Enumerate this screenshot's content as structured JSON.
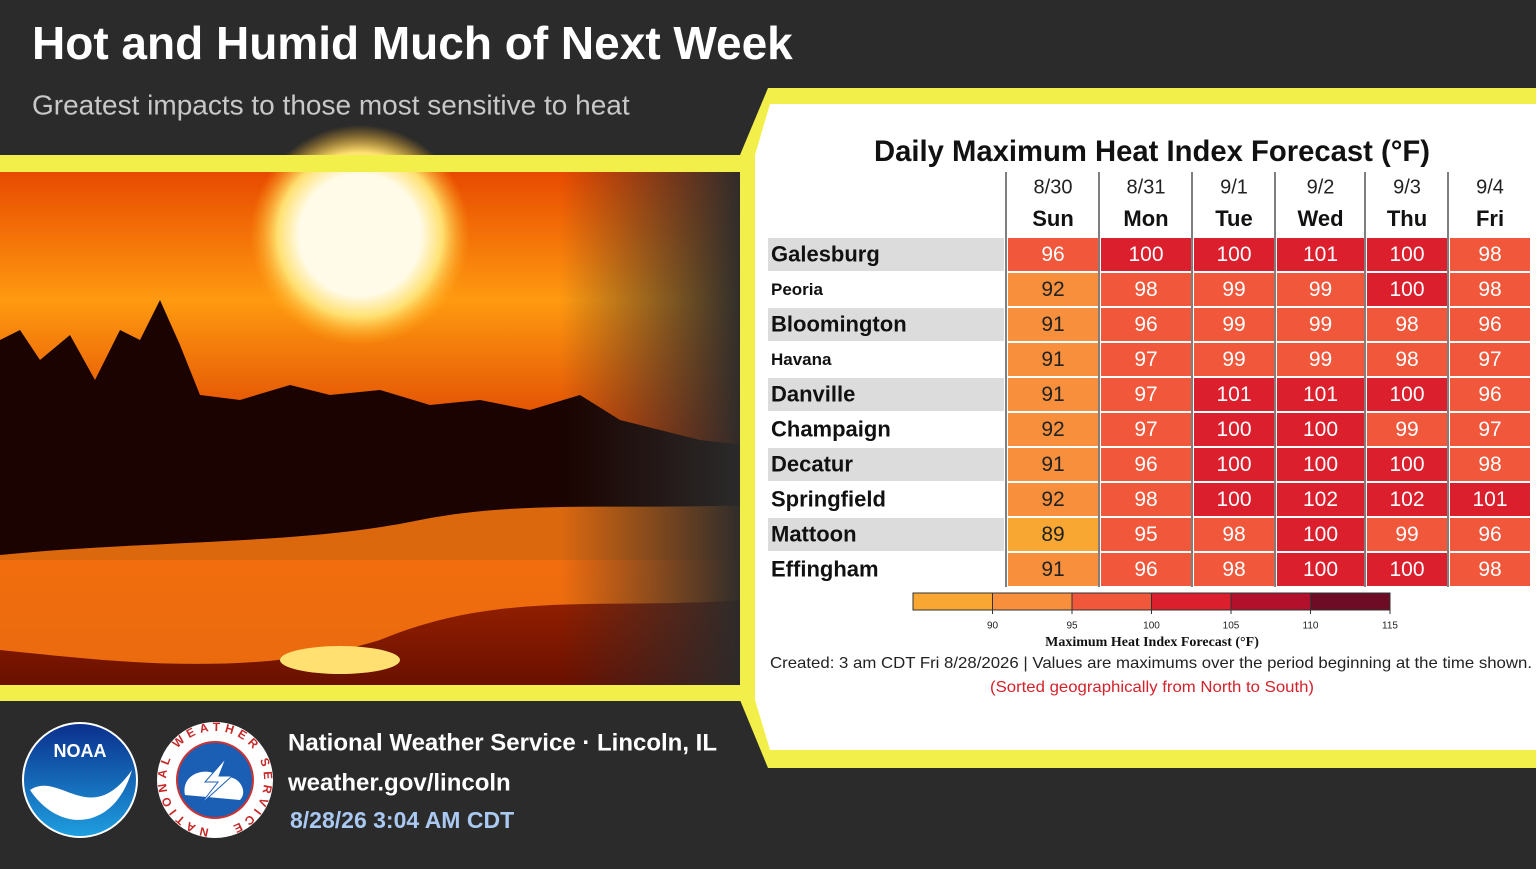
{
  "header": {
    "title": "Hot and Humid Much of Next Week",
    "subtitle": "Greatest impacts to those most sensitive to heat"
  },
  "table": {
    "title": "Daily Maximum Heat Index Forecast (°F)",
    "columns": [
      {
        "date": "8/30",
        "day": "Sun"
      },
      {
        "date": "8/31",
        "day": "Mon"
      },
      {
        "date": "9/1",
        "day": "Tue"
      },
      {
        "date": "9/2",
        "day": "Wed"
      },
      {
        "date": "9/3",
        "day": "Thu"
      },
      {
        "date": "9/4",
        "day": "Fri"
      }
    ],
    "rows": [
      {
        "city": "Galesburg",
        "values": [
          96,
          100,
          100,
          101,
          100,
          98
        ]
      },
      {
        "city": "Peoria",
        "values": [
          92,
          98,
          99,
          99,
          100,
          98
        ]
      },
      {
        "city": "Bloomington",
        "values": [
          91,
          96,
          99,
          99,
          98,
          96
        ]
      },
      {
        "city": "Havana",
        "values": [
          91,
          97,
          99,
          99,
          98,
          97
        ]
      },
      {
        "city": "Danville",
        "values": [
          91,
          97,
          101,
          101,
          100,
          96
        ]
      },
      {
        "city": "Champaign",
        "values": [
          92,
          97,
          100,
          100,
          99,
          97
        ]
      },
      {
        "city": "Decatur",
        "values": [
          91,
          96,
          100,
          100,
          100,
          98
        ]
      },
      {
        "city": "Springfield",
        "values": [
          92,
          98,
          100,
          102,
          102,
          101
        ]
      },
      {
        "city": "Mattoon",
        "values": [
          89,
          95,
          98,
          100,
          99,
          96
        ]
      },
      {
        "city": "Effingham",
        "values": [
          91,
          96,
          98,
          100,
          100,
          98
        ]
      }
    ]
  },
  "colorbar": {
    "label": "Maximum Heat Index Forecast (°F)",
    "xlim": [
      85,
      115
    ],
    "xticks": [
      90,
      95,
      100,
      105,
      110,
      115
    ],
    "colors": [
      "#f8a732",
      "#f78f3d",
      "#f1573b",
      "#dc1f2c",
      "#b3112b",
      "#6e0b25"
    ]
  },
  "notes": {
    "created": "Created: 3 am CDT Fri 8/28/2026  |  Values are maximums over the period beginning at the time shown.",
    "sorted": "(Sorted geographically from North to South)"
  },
  "logos": {
    "noaa": "NOAA",
    "nws": "NATIONAL WEATHER SERVICE"
  },
  "footer": {
    "office": "National Weather Service · Lincoln, IL",
    "url": "weather.gov/lincoln",
    "timestamp": "8/28/26  3:04 AM CDT"
  }
}
